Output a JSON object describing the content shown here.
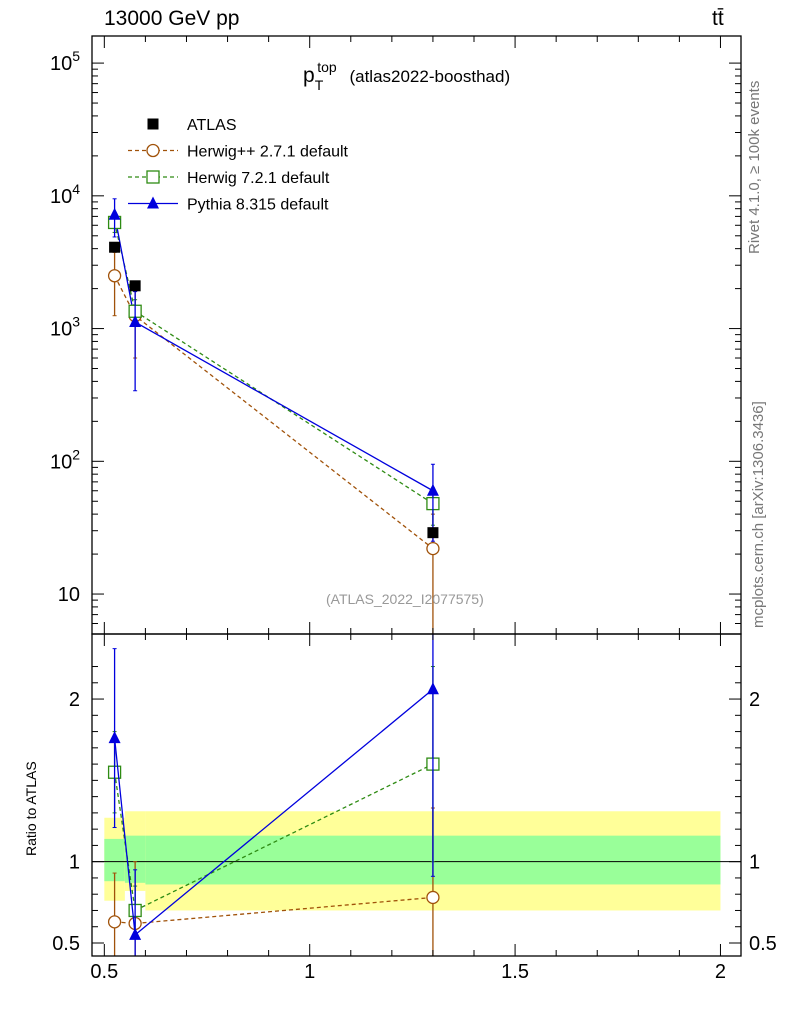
{
  "header": {
    "energy": "13000 GeV pp",
    "process": "tt̄"
  },
  "title": {
    "var_main": "p",
    "var_sub": "T",
    "var_sup": "top",
    "analysis": "(atlas2022-boosthad)"
  },
  "watermark": "(ATLAS_2022_I2077575)",
  "side_text": {
    "rivet": "Rivet 4.1.0, ≥ 100k events",
    "mcplots": "mcplots.cern.ch [arXiv:1306.3436]"
  },
  "ratio_ylabel": "Ratio to ATLAS",
  "colors": {
    "atlas": "#000000",
    "herwigpp": "#a0520a",
    "herwig7": "#2e8b13",
    "pythia": "#0000dd",
    "band_outer": "#ffff99",
    "band_inner": "#99ff99"
  },
  "chart_data": {
    "type": "line",
    "main": {
      "yscale": "log",
      "ylim": [
        5,
        160000
      ],
      "yticks": [
        10,
        100,
        1000,
        10000,
        100000
      ],
      "ytick_labels": [
        {
          "base": "10",
          "exp": ""
        },
        {
          "base": "10",
          "exp": "2"
        },
        {
          "base": "10",
          "exp": "3"
        },
        {
          "base": "10",
          "exp": "4"
        },
        {
          "base": "10",
          "exp": "5"
        }
      ]
    },
    "ratio": {
      "ylim": [
        0.42,
        2.4
      ],
      "yticks": [
        0.5,
        1,
        2
      ],
      "ytick_labels": [
        "0.5",
        "1",
        "2"
      ]
    },
    "xlim": [
      0.47,
      2.05
    ],
    "xticks": [
      0.5,
      1,
      1.5,
      2
    ],
    "xtick_labels": [
      "0.5",
      "1",
      "1.5",
      "2"
    ],
    "legend_position": "top-left",
    "data_bins": [
      [
        0.5,
        0.55
      ],
      [
        0.55,
        0.6
      ],
      [
        0.6,
        2.0
      ]
    ],
    "atlas": {
      "name": "ATLAS",
      "x": [
        0.525,
        0.575,
        1.3
      ],
      "y": [
        4100,
        2100,
        29
      ],
      "yerr": [
        150,
        80,
        2
      ],
      "band_outer": [
        [
          0.76,
          1.27
        ],
        [
          0.82,
          1.31
        ],
        [
          0.7,
          1.31
        ]
      ],
      "band_inner": [
        [
          0.88,
          1.14
        ],
        [
          0.87,
          1.16
        ],
        [
          0.86,
          1.16
        ]
      ]
    },
    "series": [
      {
        "name": "Herwig++ 2.7.1 default",
        "key": "herwigpp",
        "marker": "circle-open",
        "linestyle": "dashed",
        "x": [
          0.525,
          0.575,
          1.3
        ],
        "y": [
          2500,
          1250,
          22
        ],
        "yerr": [
          1250,
          650,
          18
        ],
        "ratio": [
          0.63,
          0.62,
          0.78
        ],
        "ratio_err": [
          0.3,
          0.38,
          0.55
        ]
      },
      {
        "name": "Herwig 7.2.1 default",
        "key": "herwig7",
        "marker": "square-open",
        "linestyle": "dashed",
        "x": [
          0.525,
          0.575,
          1.3
        ],
        "y": [
          6300,
          1350,
          48
        ],
        "yerr": [
          1000,
          300,
          15
        ],
        "ratio": [
          1.55,
          0.7,
          1.6
        ],
        "ratio_err": [
          0.25,
          0.15,
          0.6
        ]
      },
      {
        "name": "Pythia 8.315 default",
        "key": "pythia",
        "marker": "triangle-filled",
        "linestyle": "solid",
        "x": [
          0.525,
          0.575,
          1.3
        ],
        "y": [
          7200,
          1120,
          60
        ],
        "yerr": [
          2300,
          780,
          35
        ],
        "ratio": [
          1.76,
          0.55,
          2.06
        ],
        "ratio_err": [
          0.55,
          0.4,
          1.15
        ]
      }
    ]
  }
}
